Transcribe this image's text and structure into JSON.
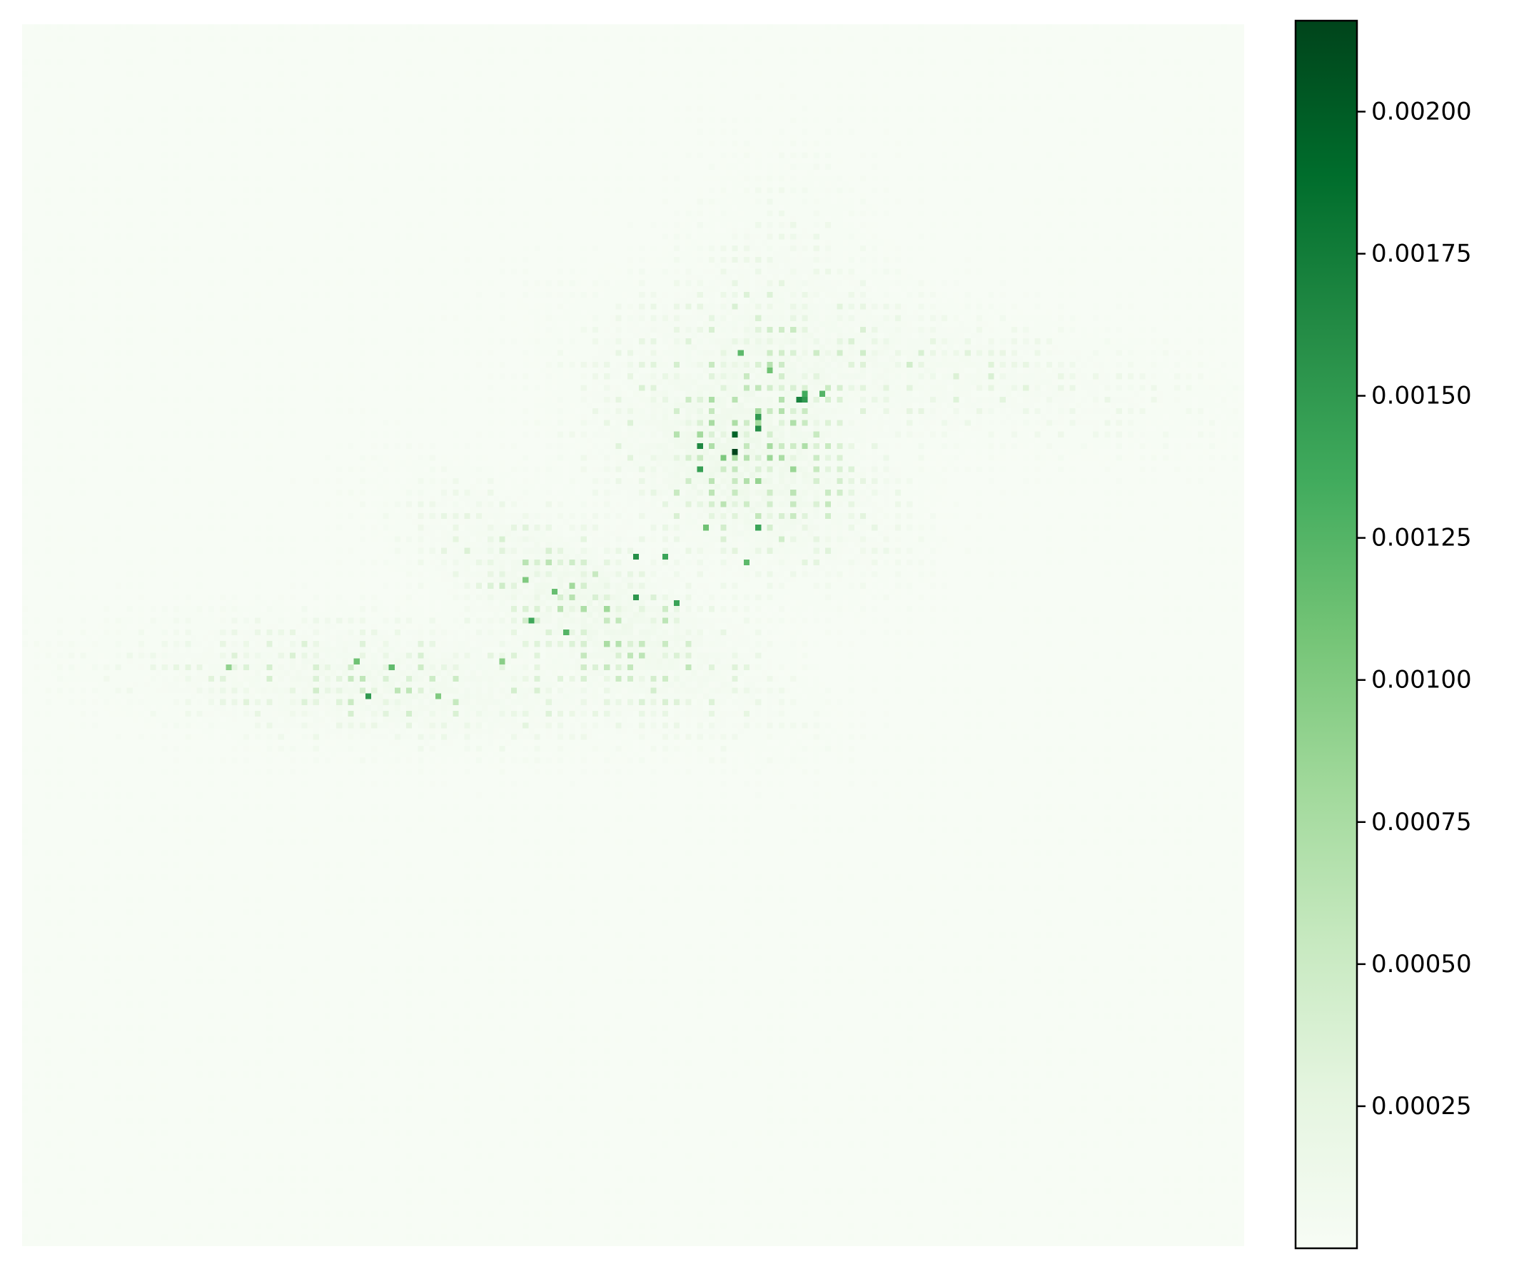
{
  "chart_data": {
    "type": "heatmap",
    "colormap": "Greens",
    "colormap_stops": [
      "#f7fcf5",
      "#e5f5e0",
      "#c7e9c0",
      "#a1d99b",
      "#74c476",
      "#41ab5d",
      "#238b45",
      "#006d2c",
      "#00441b"
    ],
    "axes_visible": false,
    "title": "",
    "xlabel": "",
    "ylabel": "",
    "value_range": [
      0.0,
      0.00216
    ],
    "colorbar": {
      "position": "right",
      "ticks": [
        0.00025,
        0.0005,
        0.00075,
        0.001,
        0.00125,
        0.0015,
        0.00175,
        0.002
      ],
      "tick_labels": [
        "0.00025",
        "0.00050",
        "0.00075",
        "0.00100",
        "0.00125",
        "0.00150",
        "0.00175",
        "0.00200"
      ]
    },
    "grid_size": [
      210,
      210
    ],
    "background_value": 5e-06,
    "density_components": [
      {
        "center": [
          0.3,
          0.54
        ],
        "spread": [
          0.12,
          0.028
        ],
        "peak": 0.00022,
        "rotation_deg": -4
      },
      {
        "center": [
          0.47,
          0.48
        ],
        "spread": [
          0.09,
          0.03
        ],
        "peak": 0.0003,
        "rotation_deg": -30
      },
      {
        "center": [
          0.59,
          0.36
        ],
        "spread": [
          0.07,
          0.045
        ],
        "peak": 0.00034,
        "rotation_deg": -25
      },
      {
        "center": [
          0.72,
          0.28
        ],
        "spread": [
          0.14,
          0.03
        ],
        "peak": 0.00014,
        "rotation_deg": -8
      },
      {
        "center": [
          0.62,
          0.23
        ],
        "spread": [
          0.05,
          0.07
        ],
        "peak": 8e-05,
        "rotation_deg": 0
      }
    ],
    "hotspots": [
      [
        0.585,
        0.348,
        0.00216
      ],
      [
        0.585,
        0.338,
        0.00195
      ],
      [
        0.634,
        0.306,
        0.0017
      ],
      [
        0.601,
        0.33,
        0.0016
      ],
      [
        0.555,
        0.345,
        0.00165
      ],
      [
        0.557,
        0.366,
        0.0015
      ],
      [
        0.503,
        0.436,
        0.00158
      ],
      [
        0.503,
        0.467,
        0.00152
      ],
      [
        0.525,
        0.436,
        0.0014
      ],
      [
        0.535,
        0.472,
        0.00142
      ],
      [
        0.418,
        0.486,
        0.00138
      ],
      [
        0.447,
        0.496,
        0.00125
      ],
      [
        0.284,
        0.551,
        0.0015
      ],
      [
        0.3,
        0.524,
        0.00118
      ],
      [
        0.276,
        0.522,
        0.0011
      ],
      [
        0.603,
        0.322,
        0.0015
      ],
      [
        0.641,
        0.3,
        0.00135
      ],
      [
        0.59,
        0.27,
        0.0012
      ],
      [
        0.6,
        0.41,
        0.0014
      ],
      [
        0.56,
        0.41,
        0.0011
      ],
      [
        0.595,
        0.44,
        0.0012
      ],
      [
        0.435,
        0.465,
        0.00115
      ],
      [
        0.41,
        0.455,
        0.001
      ],
      [
        0.17,
        0.525,
        0.0009
      ],
      [
        0.342,
        0.548,
        0.001
      ],
      [
        0.395,
        0.52,
        0.00095
      ],
      [
        0.64,
        0.305,
        0.0015
      ],
      [
        0.655,
        0.3,
        0.00125
      ],
      [
        0.555,
        0.365,
        0.00145
      ],
      [
        0.612,
        0.285,
        0.0011
      ]
    ],
    "speckle": {
      "density": 0.55,
      "lattice_step": 2,
      "seed": 7
    }
  }
}
